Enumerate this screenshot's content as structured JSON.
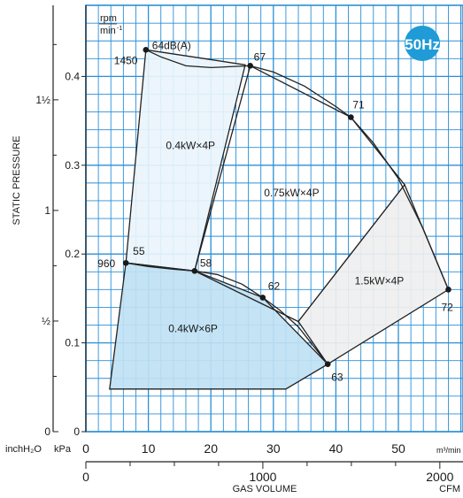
{
  "chart_data": {
    "type": "line",
    "title": "",
    "frequency_badge": "50Hz",
    "rpm_label": "rpm",
    "rpm_unit": "min",
    "xlabel": "GAS VOLUME",
    "ylabel": "STATIC PRESSURE",
    "x_unit_primary": "m³/min",
    "x_unit_secondary": "CFM",
    "y_unit_primary": "kPa",
    "y_unit_secondary": "inchH₂O",
    "xlim": [
      0,
      60
    ],
    "ylim": [
      0,
      0.48
    ],
    "grid": true,
    "x_ticks": [
      "0",
      "10",
      "20",
      "30",
      "40",
      "50"
    ],
    "y_ticks": [
      "0",
      "0.1",
      "0.2",
      "0.3",
      "0.4"
    ],
    "cfm_ticks": [
      "0",
      "1000",
      "2000"
    ],
    "inch_ticks": [
      "0",
      "½",
      "1",
      "1½"
    ],
    "regions": [
      {
        "name": "0.4kW×4P",
        "fill": "#e9f4fb",
        "outline": [
          [
            6.4,
            0.19
          ],
          [
            9.6,
            0.43
          ],
          [
            25.5,
            0.413
          ],
          [
            17.4,
            0.181
          ]
        ]
      },
      {
        "name": "0.4kW×6P",
        "fill": "#bfe1f3",
        "outline": [
          [
            6.4,
            0.19
          ],
          [
            17.4,
            0.181
          ],
          [
            28.3,
            0.151
          ],
          [
            38.7,
            0.076
          ],
          [
            32.0,
            0.048
          ],
          [
            3.8,
            0.048
          ]
        ]
      },
      {
        "name": "0.75kW×4P",
        "fill": "none",
        "outline": [
          [
            17.4,
            0.181
          ],
          [
            26.3,
            0.412
          ],
          [
            42.4,
            0.354
          ],
          [
            51.0,
            0.278
          ],
          [
            34.0,
            0.124
          ]
        ]
      },
      {
        "name": "1.5kW×4P",
        "fill": "#efefef",
        "outline": [
          [
            34.0,
            0.124
          ],
          [
            51.0,
            0.278
          ],
          [
            58.0,
            0.16
          ],
          [
            38.7,
            0.076
          ]
        ]
      }
    ],
    "rpm_marks": [
      {
        "label": "1450",
        "x": 9.6,
        "y": 0.43
      },
      {
        "label": "960",
        "x": 6.4,
        "y": 0.19
      }
    ],
    "series": [
      {
        "name": "1450",
        "x": [
          9.6,
          12,
          16,
          20,
          23,
          26.3,
          30,
          35,
          40,
          42.4,
          46,
          50,
          54,
          58
        ],
        "y": [
          0.43,
          0.422,
          0.412,
          0.41,
          0.411,
          0.412,
          0.405,
          0.389,
          0.366,
          0.354,
          0.325,
          0.285,
          0.228,
          0.16
        ]
      },
      {
        "name": "960",
        "x": [
          6.4,
          10,
          14,
          17.4,
          21,
          25,
          28.3,
          31,
          34,
          36,
          38.7
        ],
        "y": [
          0.19,
          0.186,
          0.183,
          0.181,
          0.177,
          0.166,
          0.151,
          0.137,
          0.118,
          0.1,
          0.076
        ]
      }
    ],
    "points": [
      {
        "label": "64dB(A)",
        "x": 9.6,
        "y": 0.43
      },
      {
        "label": "67",
        "x": 26.3,
        "y": 0.412
      },
      {
        "label": "71",
        "x": 42.4,
        "y": 0.354
      },
      {
        "label": "55",
        "x": 6.4,
        "y": 0.19
      },
      {
        "label": "58",
        "x": 17.4,
        "y": 0.181
      },
      {
        "label": "62",
        "x": 28.3,
        "y": 0.151
      },
      {
        "label": "63",
        "x": 38.7,
        "y": 0.076
      },
      {
        "label": "72",
        "x": 58.0,
        "y": 0.16
      }
    ]
  }
}
